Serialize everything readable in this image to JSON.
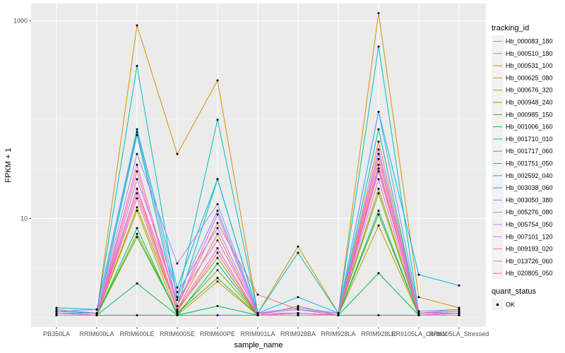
{
  "chart_data": {
    "type": "line",
    "xlabel": "sample_name",
    "ylabel": "FPKM + 1",
    "y_scale": "log10",
    "ylim": [
      0.8,
      1500
    ],
    "y_ticks": [
      {
        "value": 10,
        "label": "10"
      },
      {
        "value": 1000,
        "label": "1000"
      }
    ],
    "grid": true,
    "legend_placement": "right",
    "categories": [
      "PB350LA",
      "RRIM600LA",
      "RRIM600LE",
      "RRIM600SE",
      "RRIM600PE",
      "RRIM901LA",
      "RRIM928BA",
      "RRIM928LA",
      "RRIM928LE",
      "RRII105LA_Control",
      "RRII105LA_Stressed"
    ],
    "legend_title": "tracking_id",
    "quant_legend_title": "quant_status",
    "quant_legend_label": "OK",
    "series": [
      {
        "name": "Hb_000083_180",
        "color": "#F8766D",
        "values": [
          1.05,
          1.05,
          30,
          1.3,
          9,
          1.7,
          1.2,
          1.05,
          60,
          1.1,
          1.1
        ]
      },
      {
        "name": "Hb_000510_180",
        "color": "#EC8239",
        "values": [
          1.2,
          1.1,
          20,
          1.2,
          7,
          1.05,
          1.3,
          1.05,
          40,
          1.1,
          1.2
        ]
      },
      {
        "name": "Hb_000531_100",
        "color": "#D89000",
        "values": [
          1.1,
          1.1,
          900,
          45,
          250,
          1.1,
          5.2,
          1.1,
          1200,
          1.6,
          1.25
        ]
      },
      {
        "name": "Hb_000625_080",
        "color": "#BE9C00",
        "values": [
          1.05,
          1.05,
          12,
          1.05,
          2.3,
          1.05,
          1.1,
          1.05,
          8.5,
          1.05,
          1.05
        ]
      },
      {
        "name": "Hb_000676_320",
        "color": "#A3A500",
        "values": [
          1.1,
          1.05,
          13,
          1.2,
          4,
          1.05,
          1.1,
          1.05,
          20,
          1.05,
          1.1
        ]
      },
      {
        "name": "Hb_000948_240",
        "color": "#7CAE00",
        "values": [
          1.05,
          1.05,
          7,
          1.1,
          3,
          1.05,
          1.05,
          1.05,
          18,
          1.05,
          1.05
        ]
      },
      {
        "name": "Hb_000985_150",
        "color": "#39B600",
        "values": [
          1.05,
          1.05,
          6.5,
          1.1,
          2.5,
          1.05,
          1.05,
          1.05,
          11,
          1.05,
          1.05
        ]
      },
      {
        "name": "Hb_001006_160",
        "color": "#00BB4E",
        "values": [
          1.05,
          1.05,
          2.2,
          1.05,
          1.3,
          1.05,
          1.05,
          1.05,
          2.8,
          1.05,
          1.05
        ]
      },
      {
        "name": "Hb_001710_010",
        "color": "#00BF7D",
        "values": [
          1.05,
          1.05,
          8,
          1.05,
          3.5,
          1.05,
          1.1,
          1.05,
          12,
          1.05,
          1.05
        ]
      },
      {
        "name": "Hb_001717_060",
        "color": "#00C1A3",
        "values": [
          1.1,
          1.05,
          70,
          1.3,
          25,
          1.1,
          1.2,
          1.05,
          80,
          1.05,
          1.1
        ]
      },
      {
        "name": "Hb_001751_050",
        "color": "#00BFC4",
        "values": [
          1.15,
          1.1,
          350,
          1.5,
          100,
          1.1,
          4.5,
          1.1,
          550,
          1.1,
          1.15
        ]
      },
      {
        "name": "Hb_002592_040",
        "color": "#00B8E7",
        "values": [
          1.25,
          1.2,
          80,
          2,
          25,
          1.1,
          1.6,
          1.1,
          120,
          2.7,
          2.1
        ]
      },
      {
        "name": "Hb_003038_060",
        "color": "#00A9FF",
        "values": [
          1.05,
          1.05,
          1.05,
          1.05,
          1.05,
          1.05,
          1.05,
          1.05,
          1.05,
          1.05,
          1.05
        ]
      },
      {
        "name": "Hb_003050_380",
        "color": "#619CFF",
        "values": [
          1.15,
          1.2,
          75,
          1.6,
          12,
          1.1,
          1.2,
          1.1,
          120,
          1.15,
          1.2
        ]
      },
      {
        "name": "Hb_005276_080",
        "color": "#9590FF",
        "values": [
          1.1,
          1.1,
          45,
          3.5,
          14,
          1.1,
          1.25,
          1.1,
          50,
          1.1,
          1.1
        ]
      },
      {
        "name": "Hb_005754_050",
        "color": "#C77CFF",
        "values": [
          1.1,
          1.05,
          25,
          1.8,
          8,
          1.1,
          1.2,
          1.05,
          30,
          1.1,
          1.15
        ]
      },
      {
        "name": "Hb_007101_120",
        "color": "#E76BF3",
        "values": [
          1.1,
          1.05,
          20,
          1.5,
          6,
          1.1,
          1.1,
          1.05,
          25,
          1.05,
          1.1
        ]
      },
      {
        "name": "Hb_009193_020",
        "color": "#FA62DB",
        "values": [
          1.05,
          1.05,
          35,
          1.3,
          11,
          1.05,
          1.1,
          1.05,
          45,
          1.05,
          1.1
        ]
      },
      {
        "name": "Hb_013726_060",
        "color": "#FF62BC",
        "values": [
          1.05,
          1.05,
          18,
          1.2,
          5,
          1.05,
          1.1,
          1.05,
          35,
          1.05,
          1.05
        ]
      },
      {
        "name": "Hb_020805_050",
        "color": "#FF6C91",
        "values": [
          1.05,
          1.05,
          16,
          1.15,
          4.5,
          1.05,
          1.05,
          1.05,
          32,
          1.05,
          1.05
        ]
      }
    ]
  }
}
